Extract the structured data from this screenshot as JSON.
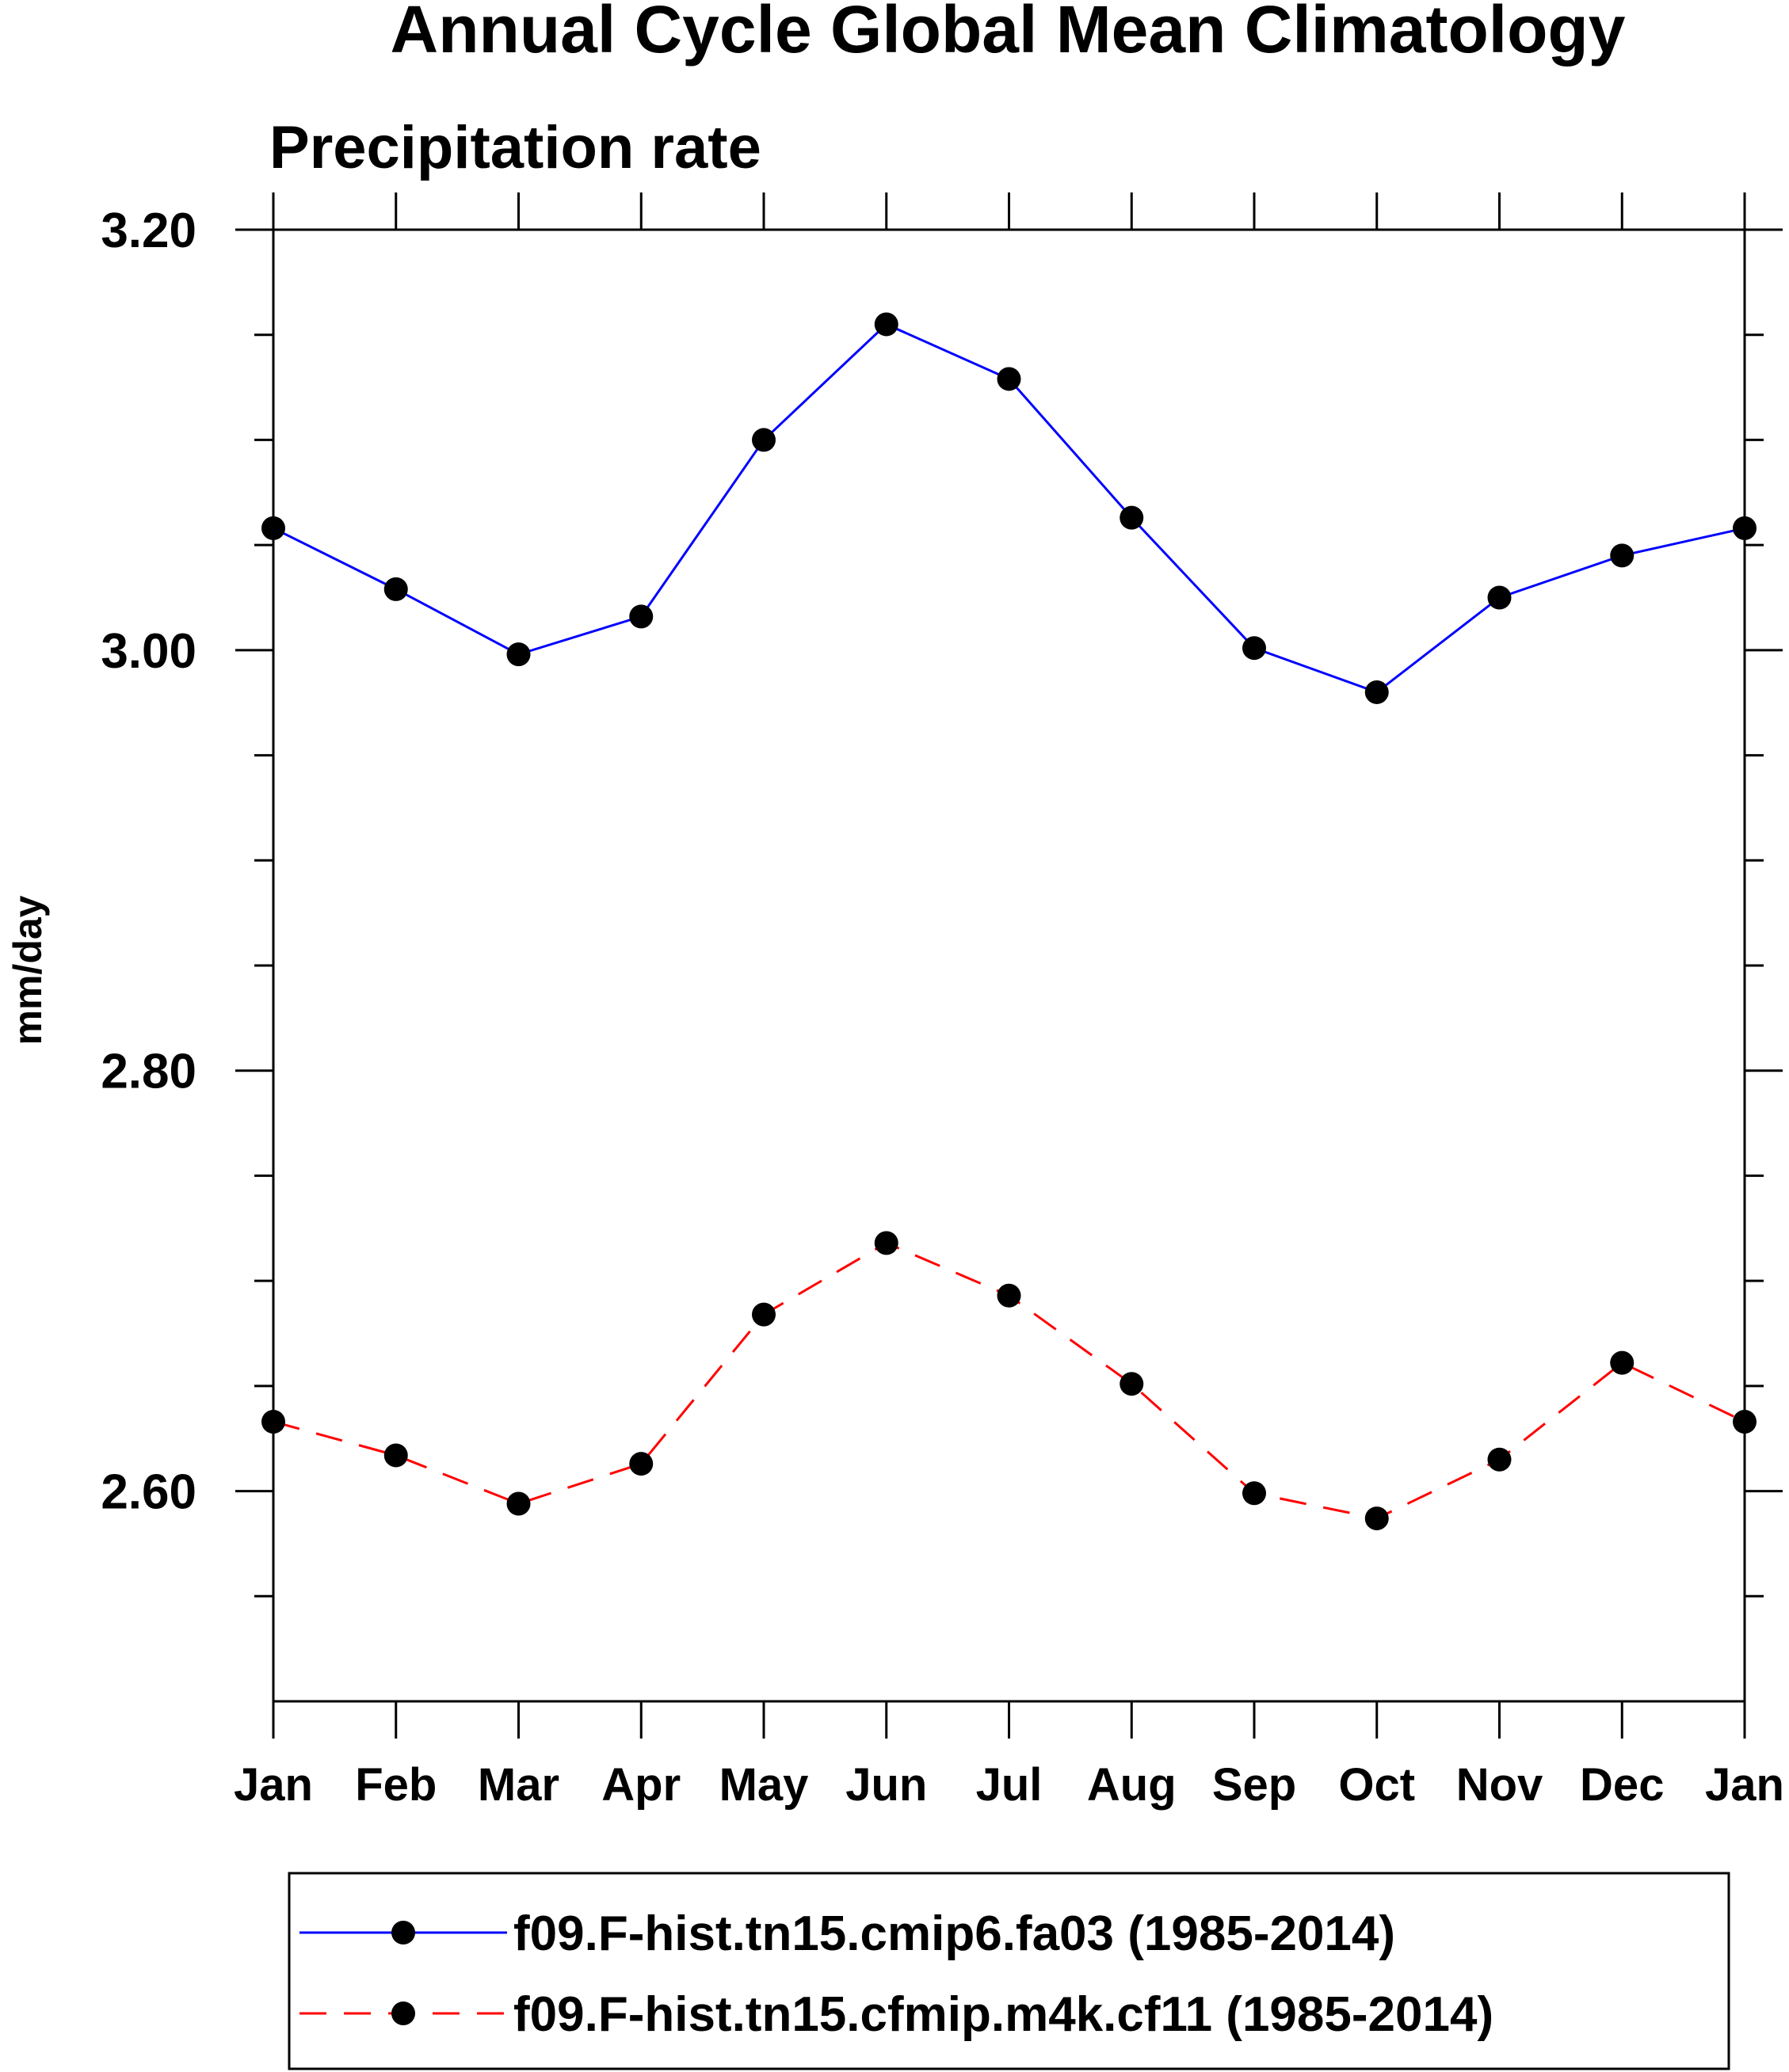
{
  "chart_data": {
    "type": "line",
    "title": "Annual Cycle Global Mean Climatology",
    "subtitle": "Precipitation rate",
    "xlabel": "",
    "ylabel": "mm/day",
    "categories": [
      "Jan",
      "Feb",
      "Mar",
      "Apr",
      "May",
      "Jun",
      "Jul",
      "Aug",
      "Sep",
      "Oct",
      "Nov",
      "Dec",
      "Jan"
    ],
    "ylim": [
      2.5,
      3.2
    ],
    "yticks": [
      2.6,
      2.8,
      3.0,
      3.2
    ],
    "ytick_labels": [
      "2.60",
      "2.80",
      "3.00",
      "3.20"
    ],
    "yminor_step": 0.05,
    "grid": false,
    "legend_position": "bottom",
    "series": [
      {
        "name": "f09.F-hist.tn15.cmip6.fa03 (1985-2014)",
        "color": "#0000ff",
        "line_style": "solid",
        "marker": "filled-circle",
        "marker_color": "#000000",
        "values": [
          3.058,
          3.029,
          2.998,
          3.016,
          3.1,
          3.155,
          3.129,
          3.063,
          3.001,
          2.98,
          3.025,
          3.045,
          3.058
        ]
      },
      {
        "name": "f09.F-hist.tn15.cfmip.m4k.cf11 (1985-2014)",
        "color": "#ff0000",
        "line_style": "dashed",
        "marker": "filled-circle",
        "marker_color": "#000000",
        "values": [
          2.633,
          2.617,
          2.594,
          2.613,
          2.684,
          2.718,
          2.693,
          2.651,
          2.599,
          2.587,
          2.615,
          2.661,
          2.633
        ]
      }
    ]
  }
}
